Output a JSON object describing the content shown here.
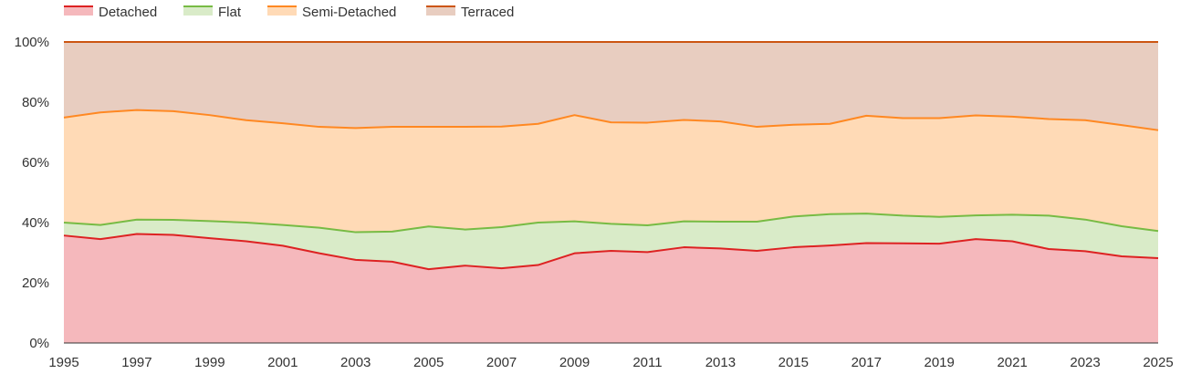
{
  "chart_data": {
    "type": "area",
    "stacked": true,
    "normalized_percent": true,
    "x": [
      1995,
      1996,
      1997,
      1998,
      1999,
      2000,
      2001,
      2002,
      2003,
      2004,
      2005,
      2006,
      2007,
      2008,
      2009,
      2010,
      2011,
      2012,
      2013,
      2014,
      2015,
      2016,
      2017,
      2018,
      2019,
      2020,
      2021,
      2022,
      2023,
      2024,
      2025
    ],
    "x_tick_labels": [
      "1995",
      "1997",
      "1999",
      "2001",
      "2003",
      "2005",
      "2007",
      "2009",
      "2011",
      "2013",
      "2015",
      "2017",
      "2019",
      "2021",
      "2023",
      "2025"
    ],
    "y_tick_labels": [
      "0%",
      "20%",
      "40%",
      "60%",
      "80%",
      "100%"
    ],
    "ylim": [
      0,
      100
    ],
    "grid": true,
    "legend_position": "top-left",
    "series": [
      {
        "name": "Detached",
        "line_color": "#dd2222",
        "fill_color": "#f5b8bc",
        "values": [
          35.7,
          34.5,
          36.2,
          35.9,
          34.8,
          33.8,
          32.3,
          29.8,
          27.6,
          27.0,
          24.5,
          25.7,
          24.8,
          25.9,
          29.8,
          30.6,
          30.2,
          31.8,
          31.4,
          30.6,
          31.8,
          32.4,
          33.2,
          33.1,
          33.0,
          34.5,
          33.8,
          31.2,
          30.5,
          28.8,
          28.2
        ]
      },
      {
        "name": "Flat",
        "line_color": "#77bb44",
        "fill_color": "#d9ebc8",
        "values": [
          4.3,
          4.7,
          4.8,
          5.0,
          5.7,
          6.2,
          6.9,
          8.5,
          9.2,
          10.0,
          14.2,
          12.0,
          13.7,
          14.1,
          10.6,
          9.0,
          8.9,
          8.6,
          8.9,
          9.7,
          10.2,
          10.4,
          9.8,
          9.2,
          8.9,
          7.9,
          8.8,
          11.1,
          10.5,
          10.0,
          9.0
        ]
      },
      {
        "name": "Semi-Detached",
        "line_color": "#ff8822",
        "fill_color": "#ffdab6",
        "values": [
          34.9,
          37.4,
          36.4,
          36.1,
          35.2,
          34.0,
          33.8,
          33.5,
          34.6,
          34.8,
          33.1,
          34.1,
          33.4,
          32.8,
          35.3,
          33.7,
          34.1,
          33.7,
          33.3,
          31.5,
          30.5,
          30.0,
          32.5,
          32.4,
          32.8,
          33.2,
          32.6,
          32.1,
          33.0,
          33.6,
          33.5
        ]
      },
      {
        "name": "Terraced",
        "line_color": "#cc5511",
        "fill_color": "#e8cdc0",
        "values": [
          25.1,
          23.4,
          22.6,
          23.0,
          24.3,
          26.0,
          27.0,
          28.2,
          28.6,
          28.2,
          28.2,
          28.2,
          28.1,
          27.2,
          24.3,
          26.7,
          26.8,
          25.9,
          26.4,
          28.2,
          27.5,
          27.2,
          24.5,
          25.3,
          25.3,
          24.4,
          24.8,
          25.6,
          26.0,
          27.6,
          29.3
        ]
      }
    ]
  }
}
